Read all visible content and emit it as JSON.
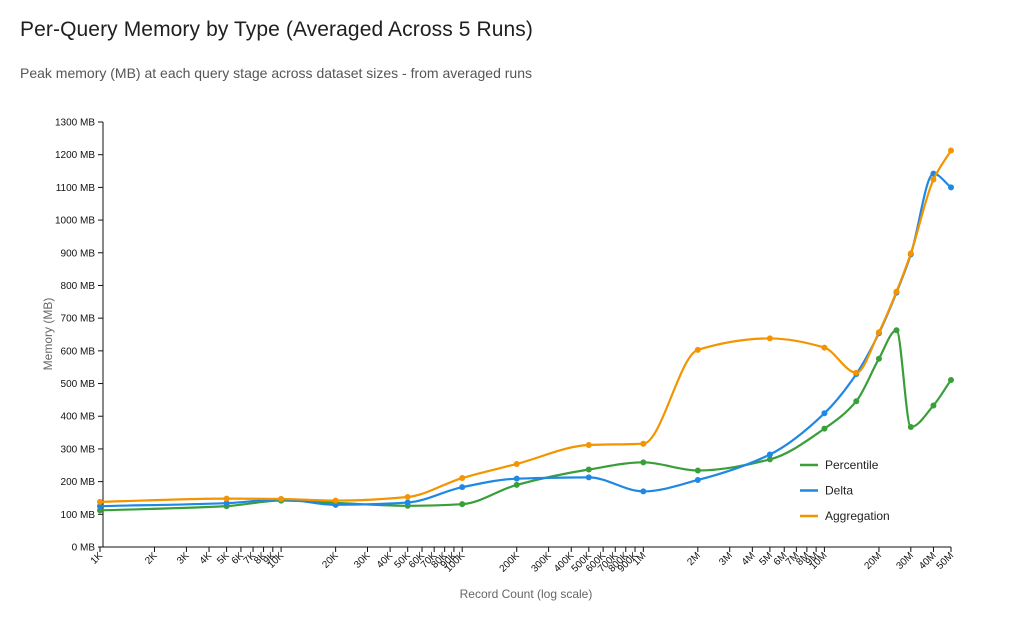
{
  "header": {
    "title": "Per-Query Memory by Type (Averaged Across 5 Runs)",
    "subtitle": "Peak memory (MB) at each query stage across dataset sizes - from averaged runs"
  },
  "chart_data": {
    "type": "line",
    "xscale": "log",
    "xlabel": "Record Count (log scale)",
    "ylabel": "Memory (MB)",
    "ylim": [
      0,
      1300
    ],
    "xlim": [
      1000,
      50000000
    ],
    "y_ticks": [
      {
        "value": 0,
        "label": "0 MB"
      },
      {
        "value": 100,
        "label": "100 MB"
      },
      {
        "value": 200,
        "label": "200 MB"
      },
      {
        "value": 300,
        "label": "300 MB"
      },
      {
        "value": 400,
        "label": "400 MB"
      },
      {
        "value": 500,
        "label": "500 MB"
      },
      {
        "value": 600,
        "label": "600 MB"
      },
      {
        "value": 700,
        "label": "700 MB"
      },
      {
        "value": 800,
        "label": "800 MB"
      },
      {
        "value": 900,
        "label": "900 MB"
      },
      {
        "value": 1000,
        "label": "1000 MB"
      },
      {
        "value": 1100,
        "label": "1100 MB"
      },
      {
        "value": 1200,
        "label": "1200 MB"
      },
      {
        "value": 1300,
        "label": "1300 MB"
      }
    ],
    "x_ticks": [
      {
        "value": 1000,
        "label": "1K"
      },
      {
        "value": 2000,
        "label": "2K"
      },
      {
        "value": 3000,
        "label": "3K"
      },
      {
        "value": 4000,
        "label": "4K"
      },
      {
        "value": 5000,
        "label": "5K"
      },
      {
        "value": 6000,
        "label": "6K"
      },
      {
        "value": 7000,
        "label": "7K"
      },
      {
        "value": 8000,
        "label": "8K"
      },
      {
        "value": 9000,
        "label": "9K"
      },
      {
        "value": 10000,
        "label": "10K"
      },
      {
        "value": 20000,
        "label": "20K"
      },
      {
        "value": 30000,
        "label": "30K"
      },
      {
        "value": 40000,
        "label": "40K"
      },
      {
        "value": 50000,
        "label": "50K"
      },
      {
        "value": 60000,
        "label": "60K"
      },
      {
        "value": 70000,
        "label": "70K"
      },
      {
        "value": 80000,
        "label": "80K"
      },
      {
        "value": 90000,
        "label": "90K"
      },
      {
        "value": 100000,
        "label": "100K"
      },
      {
        "value": 200000,
        "label": "200K"
      },
      {
        "value": 300000,
        "label": "300K"
      },
      {
        "value": 400000,
        "label": "400K"
      },
      {
        "value": 500000,
        "label": "500K"
      },
      {
        "value": 600000,
        "label": "600K"
      },
      {
        "value": 700000,
        "label": "700K"
      },
      {
        "value": 800000,
        "label": "800K"
      },
      {
        "value": 900000,
        "label": "900K"
      },
      {
        "value": 1000000,
        "label": "1M"
      },
      {
        "value": 2000000,
        "label": "2M"
      },
      {
        "value": 3000000,
        "label": "3M"
      },
      {
        "value": 4000000,
        "label": "4M"
      },
      {
        "value": 5000000,
        "label": "5M"
      },
      {
        "value": 6000000,
        "label": "6M"
      },
      {
        "value": 7000000,
        "label": "7M"
      },
      {
        "value": 8000000,
        "label": "8M"
      },
      {
        "value": 9000000,
        "label": "9M"
      },
      {
        "value": 10000000,
        "label": "10M"
      },
      {
        "value": 20000000,
        "label": "20M"
      },
      {
        "value": 30000000,
        "label": "30M"
      },
      {
        "value": 40000000,
        "label": "40M"
      },
      {
        "value": 50000000,
        "label": "50M"
      }
    ],
    "legend": "bottom-right",
    "grid": false,
    "series": [
      {
        "name": "Percentile",
        "color": "#3a9e3a",
        "points": [
          [
            1000,
            112
          ],
          [
            5000,
            125
          ],
          [
            10000,
            142
          ],
          [
            20000,
            135
          ],
          [
            50000,
            126
          ],
          [
            100000,
            131
          ],
          [
            200000,
            190
          ],
          [
            500000,
            237
          ],
          [
            1000000,
            259
          ],
          [
            2000000,
            234
          ],
          [
            5000000,
            268
          ],
          [
            10000000,
            362
          ],
          [
            15000000,
            446
          ],
          [
            20000000,
            576
          ],
          [
            25000000,
            663
          ],
          [
            30000000,
            367
          ],
          [
            40000000,
            433
          ],
          [
            50000000,
            511
          ]
        ]
      },
      {
        "name": "Delta",
        "color": "#1f88e5",
        "points": [
          [
            1000,
            125
          ],
          [
            5000,
            134
          ],
          [
            10000,
            146
          ],
          [
            20000,
            129
          ],
          [
            50000,
            136
          ],
          [
            100000,
            183
          ],
          [
            200000,
            209
          ],
          [
            500000,
            213
          ],
          [
            1000000,
            170
          ],
          [
            2000000,
            205
          ],
          [
            5000000,
            283
          ],
          [
            10000000,
            409
          ],
          [
            15000000,
            529
          ],
          [
            20000000,
            654
          ],
          [
            25000000,
            778
          ],
          [
            30000000,
            895
          ],
          [
            40000000,
            1142
          ],
          [
            50000000,
            1100
          ]
        ]
      },
      {
        "name": "Aggregation",
        "color": "#f39400",
        "points": [
          [
            1000,
            138
          ],
          [
            5000,
            148
          ],
          [
            10000,
            147
          ],
          [
            20000,
            142
          ],
          [
            50000,
            153
          ],
          [
            100000,
            211
          ],
          [
            200000,
            254
          ],
          [
            500000,
            312
          ],
          [
            1000000,
            316
          ],
          [
            2000000,
            603
          ],
          [
            5000000,
            638
          ],
          [
            10000000,
            610
          ],
          [
            15000000,
            533
          ],
          [
            20000000,
            657
          ],
          [
            25000000,
            781
          ],
          [
            30000000,
            898
          ],
          [
            40000000,
            1124
          ],
          [
            50000000,
            1213
          ]
        ]
      }
    ]
  }
}
